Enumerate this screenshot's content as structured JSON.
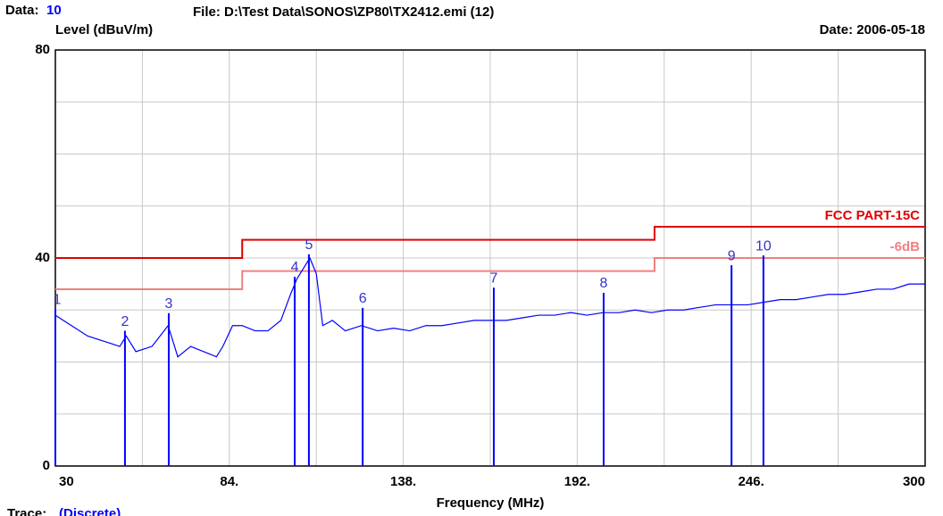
{
  "chart_data": {
    "type": "line",
    "data_label": "Data:",
    "data_value": "10",
    "file": "File: D:\\Test Data\\SONOS\\ZP80\\TX2412.emi  (12)",
    "date": "Date: 2006-05-18",
    "y_label": "Level (dBuV/m)",
    "x_label": "Frequency (MHz)",
    "trace_label": "Trace:",
    "trace_value": "(Discrete)",
    "xlim": [
      30,
      300
    ],
    "ylim": [
      0,
      80
    ],
    "xticks": [
      30,
      {
        "value": 84,
        "label": "84."
      },
      {
        "value": 138,
        "label": "138."
      },
      {
        "value": 192,
        "label": "192."
      },
      {
        "value": 246,
        "label": "246."
      },
      300
    ],
    "x_minor_ticks": [
      57,
      111,
      165,
      219,
      273
    ],
    "yticks": [
      0,
      40,
      80
    ],
    "y_minor_ticks": [
      10,
      20,
      30,
      50,
      60,
      70
    ],
    "grid": true,
    "x": [
      30,
      35,
      40,
      45,
      50,
      52,
      55,
      60,
      65,
      68,
      72,
      76,
      80,
      82,
      85,
      88,
      92,
      96,
      100,
      103,
      105,
      107,
      109,
      111,
      113,
      116,
      120,
      125,
      130,
      135,
      140,
      145,
      150,
      155,
      160,
      165,
      170,
      175,
      180,
      185,
      190,
      195,
      200,
      205,
      210,
      215,
      220,
      225,
      230,
      235,
      240,
      245,
      250,
      255,
      260,
      265,
      270,
      275,
      280,
      285,
      290,
      295,
      300
    ],
    "series": [
      {
        "name": "Trace",
        "color": "#0000ff",
        "values": [
          29,
          27,
          25,
          24,
          23,
          25,
          22,
          23,
          27,
          21,
          23,
          22,
          21,
          23,
          27,
          27,
          26,
          26,
          28,
          33,
          36,
          38,
          40,
          37,
          27,
          28,
          26,
          27,
          26,
          26.5,
          26,
          27,
          27,
          27.5,
          28,
          28,
          28,
          28.5,
          29,
          29,
          29.5,
          29,
          29.5,
          29.5,
          30,
          29.5,
          30,
          30,
          30.5,
          31,
          31,
          31,
          31.5,
          32,
          32,
          32.5,
          33,
          33,
          33.5,
          34,
          34,
          35,
          35
        ]
      }
    ],
    "limits": [
      {
        "name": "FCC PART-15C",
        "color": "#e00000",
        "x": [
          30,
          88,
          88,
          216,
          216,
          300
        ],
        "values": [
          40,
          40,
          43.5,
          43.5,
          46,
          46
        ]
      },
      {
        "name": "-6dB",
        "color": "#f08080",
        "x": [
          30,
          88,
          88,
          216,
          216,
          300
        ],
        "values": [
          34,
          34,
          37.5,
          37.5,
          40,
          40
        ]
      }
    ],
    "markers": [
      {
        "label": "1",
        "x": 30,
        "value": 30.2
      },
      {
        "label": "2",
        "x": 51.6,
        "value": 26
      },
      {
        "label": "3",
        "x": 65.2,
        "value": 29.4
      },
      {
        "label": "4",
        "x": 104.3,
        "value": 36.4
      },
      {
        "label": "5",
        "x": 108.7,
        "value": 40.7
      },
      {
        "label": "6",
        "x": 125.4,
        "value": 30.4
      },
      {
        "label": "7",
        "x": 166.1,
        "value": 34.3
      },
      {
        "label": "8",
        "x": 200.2,
        "value": 33.3
      },
      {
        "label": "9",
        "x": 239.9,
        "value": 38.6
      },
      {
        "label": "10",
        "x": 249.8,
        "value": 40.5
      }
    ]
  }
}
